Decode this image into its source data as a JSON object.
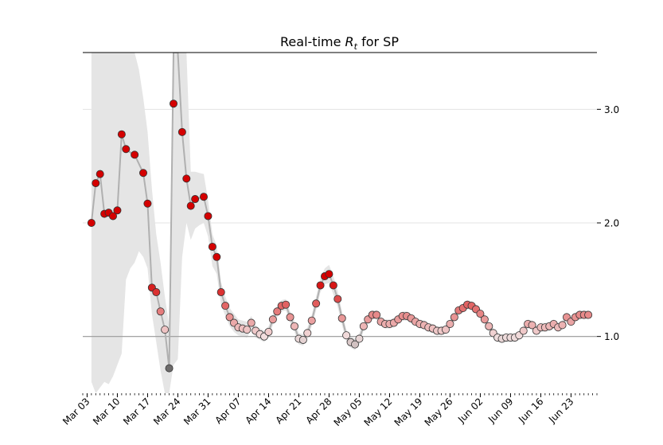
{
  "chart_data": {
    "type": "scatter",
    "title": "Real-time R_t for SP",
    "title_prefix": "Real-time ",
    "title_symbol": "R",
    "title_subscript": "t",
    "title_suffix": " for SP",
    "ylim": [
      0.5,
      3.5
    ],
    "xlim": [
      "2020-03-02",
      "2020-06-29"
    ],
    "y_ticks": [
      1.0,
      2.0,
      3.0
    ],
    "y_tick_labels": [
      "1.0",
      "2.0",
      "3.0"
    ],
    "y_axis_side": "right",
    "grid": "horizontal",
    "reference_line": 1.0,
    "x_tick_labels": [
      "Mar 03",
      "Mar 10",
      "Mar 17",
      "Mar 24",
      "Mar 31",
      "Apr 07",
      "Apr 14",
      "Apr 21",
      "Apr 28",
      "May 05",
      "May 12",
      "May 19",
      "May 26",
      "Jun 02",
      "Jun 09",
      "Jun 16",
      "Jun 23"
    ],
    "x_tick_dates": [
      "2020-03-03",
      "2020-03-10",
      "2020-03-17",
      "2020-03-24",
      "2020-03-31",
      "2020-04-07",
      "2020-04-14",
      "2020-04-21",
      "2020-04-28",
      "2020-05-05",
      "2020-05-12",
      "2020-05-19",
      "2020-05-26",
      "2020-06-02",
      "2020-06-09",
      "2020-06-16",
      "2020-06-23"
    ],
    "start_date": "2020-03-04",
    "series": [
      {
        "values": [
          2.0,
          2.35,
          2.43,
          2.08,
          2.09,
          2.06,
          2.11,
          2.78,
          2.65,
          null,
          2.6,
          null,
          2.44,
          2.17,
          1.43,
          1.39,
          1.22,
          1.06,
          0.72,
          3.05,
          null,
          2.8,
          2.39,
          2.15,
          2.21,
          null,
          2.23,
          2.06,
          1.79,
          1.7,
          1.39,
          1.27,
          1.17,
          1.12,
          1.08,
          1.07,
          1.06,
          1.12,
          1.05,
          1.02,
          1.0,
          1.04,
          1.15,
          1.22,
          1.27,
          1.28,
          1.17,
          1.09,
          0.98,
          0.97,
          1.03,
          1.14,
          1.29,
          1.45,
          1.53,
          1.55,
          1.45,
          1.33,
          1.16,
          1.01,
          0.95,
          0.93,
          0.98,
          1.09,
          1.15,
          1.19,
          1.19,
          1.13,
          1.11,
          1.11,
          1.12,
          1.15,
          1.18,
          1.18,
          1.16,
          1.13,
          1.11,
          1.1,
          1.08,
          1.07,
          1.05,
          1.05,
          1.06,
          1.11,
          1.17,
          1.23,
          1.25,
          1.28,
          1.27,
          1.24,
          1.2,
          1.15,
          1.09,
          1.03,
          0.99,
          0.98,
          0.99,
          0.99,
          0.99,
          1.01,
          1.05,
          1.11,
          1.1,
          1.05,
          1.08,
          1.08,
          1.09,
          1.11,
          1.08,
          1.1,
          1.17,
          1.13,
          1.17,
          1.19,
          1.19,
          1.19
        ],
        "line_values": [
          2.0,
          2.35,
          2.43,
          2.08,
          2.09,
          2.06,
          2.11,
          2.78,
          2.65,
          2.62,
          2.6,
          2.52,
          2.44,
          2.17,
          1.43,
          1.39,
          1.22,
          1.06,
          0.72,
          3.5,
          3.5,
          2.8,
          2.39,
          2.15,
          2.21,
          2.22,
          2.23,
          2.06,
          1.79,
          1.7,
          1.39,
          1.27,
          1.17,
          1.12,
          1.08,
          1.07,
          1.06,
          1.12,
          1.05,
          1.02,
          1.0,
          1.04,
          1.15,
          1.22,
          1.27,
          1.28,
          1.17,
          1.09,
          0.98,
          0.97,
          1.03,
          1.14,
          1.29,
          1.45,
          1.53,
          1.55,
          1.45,
          1.33,
          1.16,
          1.01,
          0.95,
          0.93,
          0.98,
          1.09,
          1.15,
          1.19,
          1.19,
          1.13,
          1.11,
          1.11,
          1.12,
          1.15,
          1.18,
          1.18,
          1.16,
          1.13,
          1.11,
          1.1,
          1.08,
          1.07,
          1.05,
          1.05,
          1.06,
          1.11,
          1.17,
          1.23,
          1.25,
          1.28,
          1.27,
          1.24,
          1.2,
          1.15,
          1.09,
          1.03,
          0.99,
          0.98,
          0.99,
          0.99,
          0.99,
          1.01,
          1.05,
          1.11,
          1.1,
          1.05,
          1.08,
          1.08,
          1.09,
          1.11,
          1.08,
          1.1,
          1.17,
          1.13,
          1.17,
          1.19,
          1.19,
          1.19
        ],
        "band_upper": [
          3.5,
          3.5,
          3.5,
          3.5,
          3.5,
          3.5,
          3.5,
          3.5,
          3.5,
          3.5,
          3.5,
          3.35,
          3.1,
          2.8,
          2.3,
          1.9,
          1.65,
          1.35,
          1.1,
          3.5,
          3.5,
          3.5,
          3.5,
          2.45,
          2.45,
          2.44,
          2.43,
          2.2,
          1.9,
          1.8,
          1.48,
          1.35,
          1.25,
          1.2,
          1.15,
          1.14,
          1.13,
          1.18,
          1.1,
          1.07,
          1.05,
          1.09,
          1.2,
          1.27,
          1.32,
          1.33,
          1.22,
          1.14,
          1.03,
          1.02,
          1.08,
          1.19,
          1.35,
          1.51,
          1.6,
          1.63,
          1.53,
          1.4,
          1.22,
          1.06,
          1.0,
          0.98,
          1.03,
          1.13,
          1.19,
          1.23,
          1.23,
          1.17,
          1.15,
          1.15,
          1.16,
          1.19,
          1.22,
          1.22,
          1.2,
          1.17,
          1.15,
          1.14,
          1.12,
          1.11,
          1.09,
          1.09,
          1.1,
          1.15,
          1.21,
          1.27,
          1.29,
          1.32,
          1.31,
          1.28,
          1.24,
          1.19,
          1.13,
          1.07,
          1.03,
          1.02,
          1.03,
          1.03,
          1.03,
          1.05,
          1.09,
          1.15,
          1.14,
          1.09,
          1.12,
          1.12,
          1.13,
          1.15,
          1.12,
          1.14,
          1.21,
          1.17,
          1.21,
          1.23,
          1.23,
          1.23
        ],
        "band_lower": [
          0.6,
          0.5,
          0.55,
          0.6,
          0.58,
          0.65,
          0.75,
          0.85,
          1.5,
          1.6,
          1.65,
          1.75,
          1.7,
          1.6,
          1.2,
          0.95,
          0.7,
          0.5,
          0.5,
          0.75,
          0.8,
          1.7,
          2.0,
          1.85,
          1.95,
          1.98,
          2.0,
          1.88,
          1.62,
          1.55,
          1.28,
          1.18,
          1.09,
          1.04,
          1.01,
          1.0,
          0.99,
          1.06,
          0.99,
          0.97,
          0.95,
          0.99,
          1.1,
          1.17,
          1.22,
          1.23,
          1.12,
          1.04,
          0.93,
          0.92,
          0.98,
          1.09,
          1.23,
          1.39,
          1.46,
          1.47,
          1.37,
          1.26,
          1.1,
          0.96,
          0.9,
          0.88,
          0.93,
          1.05,
          1.11,
          1.15,
          1.15,
          1.09,
          1.07,
          1.07,
          1.08,
          1.11,
          1.14,
          1.14,
          1.12,
          1.09,
          1.07,
          1.06,
          1.04,
          1.03,
          1.01,
          1.01,
          1.02,
          1.07,
          1.13,
          1.19,
          1.21,
          1.24,
          1.23,
          1.2,
          1.16,
          1.11,
          1.05,
          0.99,
          0.95,
          0.94,
          0.95,
          0.95,
          0.95,
          0.97,
          1.01,
          1.07,
          1.06,
          1.01,
          1.04,
          1.04,
          1.05,
          1.07,
          1.04,
          1.06,
          1.13,
          1.09,
          1.13,
          1.15,
          1.15,
          1.15
        ]
      }
    ],
    "colors": {
      "high": "#d40000",
      "mid": "#f2dede",
      "low": "#636363",
      "neutral": "#dcdcdc",
      "line": "#b0b0b0",
      "band": "#e5e5e5",
      "grid": "#e3e3e3",
      "reference": "#999999"
    }
  }
}
